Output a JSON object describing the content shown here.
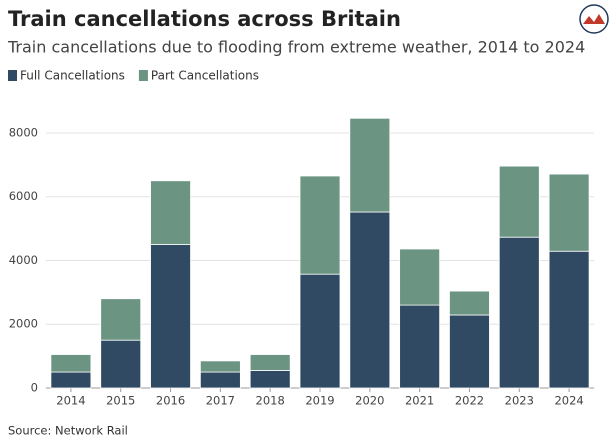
{
  "chart_data": {
    "type": "stacked-bar",
    "title": "Train cancellations across Britain",
    "subtitle": "Train cancellations due to flooding from extreme weather, 2014 to 2024",
    "source": "Source: Network Rail",
    "categories": [
      "2014",
      "2015",
      "2016",
      "2017",
      "2018",
      "2019",
      "2020",
      "2021",
      "2022",
      "2023",
      "2024"
    ],
    "series": [
      {
        "name": "Full Cancellations",
        "color": "#2f4a62",
        "values": [
          500,
          1500,
          4500,
          500,
          550,
          3570,
          5520,
          2600,
          2290,
          4730,
          4290
        ]
      },
      {
        "name": "Part Cancellations",
        "color": "#6b9482",
        "values": [
          550,
          1300,
          2000,
          350,
          500,
          3080,
          2940,
          1760,
          750,
          2230,
          2420
        ]
      }
    ],
    "ylim": [
      0,
      8500
    ],
    "yticks": [
      0,
      2000,
      4000,
      6000,
      8000
    ],
    "grid": true
  }
}
